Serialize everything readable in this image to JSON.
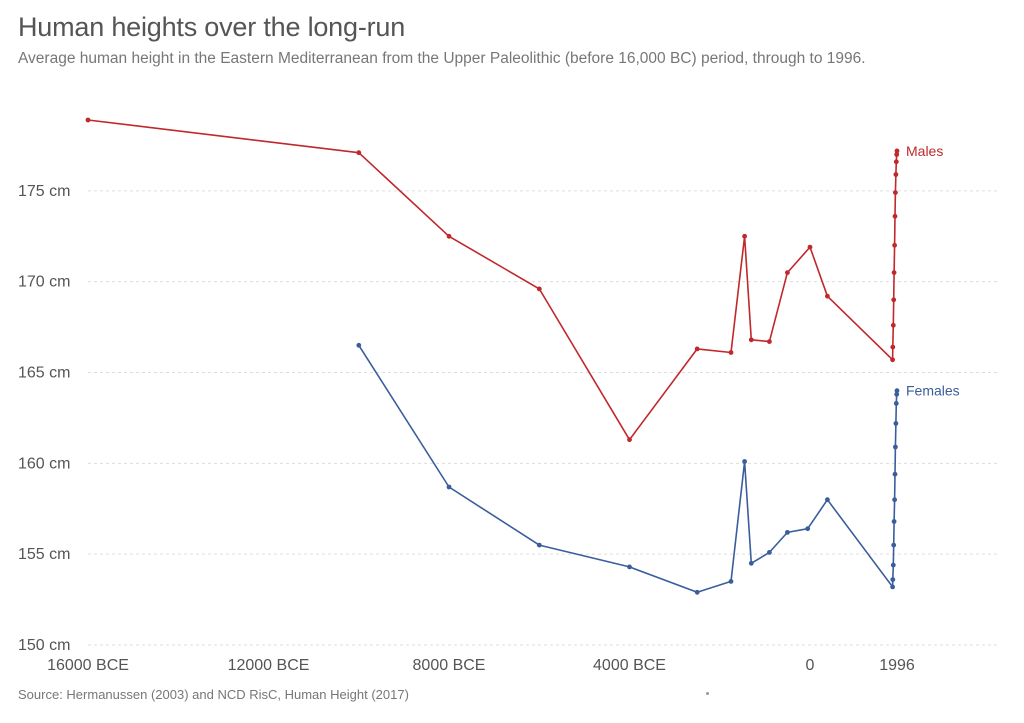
{
  "chart_data": {
    "type": "line",
    "title": "Human heights over the long-run",
    "subtitle": "Average human height in the Eastern Mediterranean from the Upper Paleolithic (before 16,000 BC) period, through to 1996.",
    "source": "Source: Hermanussen (2003) and NCD RisC, Human Height (2017)",
    "ylim": [
      150,
      180
    ],
    "xlim": [
      -16000,
      1996
    ],
    "y_ticks": [
      150,
      155,
      160,
      165,
      170,
      175
    ],
    "y_tick_labels": [
      "150 cm",
      "155 cm",
      "160 cm",
      "165 cm",
      "170 cm",
      "175 cm"
    ],
    "x_ticks": [
      -16000,
      -12000,
      -8000,
      -4000,
      0,
      1996
    ],
    "x_tick_labels": [
      "16000 BCE",
      "12000 BCE",
      "8000 BCE",
      "4000 BCE",
      "0",
      "1996"
    ],
    "grid": true,
    "series": [
      {
        "name": "Males",
        "color": "#c0282b",
        "x": [
          -16000,
          -10000,
          -8000,
          -6000,
          -4000,
          -2500,
          -1750,
          -1450,
          -1300,
          -900,
          -500,
          0,
          400,
          1896,
          1900,
          1910,
          1920,
          1930,
          1940,
          1950,
          1960,
          1970,
          1980,
          1990,
          1996
        ],
        "y": [
          178.9,
          177.1,
          172.5,
          169.6,
          161.3,
          166.3,
          166.1,
          172.5,
          166.8,
          166.7,
          170.5,
          171.9,
          169.2,
          165.7,
          166.4,
          167.6,
          169.0,
          170.5,
          172.0,
          173.6,
          174.9,
          175.9,
          176.6,
          177.0,
          177.2
        ]
      },
      {
        "name": "Females",
        "color": "#3a5d9c",
        "x": [
          -10000,
          -8000,
          -6000,
          -4000,
          -2500,
          -1750,
          -1450,
          -1300,
          -900,
          -500,
          -50,
          400,
          1896,
          1900,
          1910,
          1920,
          1930,
          1940,
          1950,
          1960,
          1970,
          1980,
          1990,
          1996
        ],
        "y": [
          166.5,
          158.7,
          155.5,
          154.3,
          152.9,
          153.5,
          160.1,
          154.5,
          155.1,
          156.2,
          156.4,
          158.0,
          153.2,
          153.6,
          154.4,
          155.5,
          156.8,
          158.0,
          159.4,
          160.9,
          162.2,
          163.3,
          163.8,
          164.0
        ]
      }
    ]
  }
}
